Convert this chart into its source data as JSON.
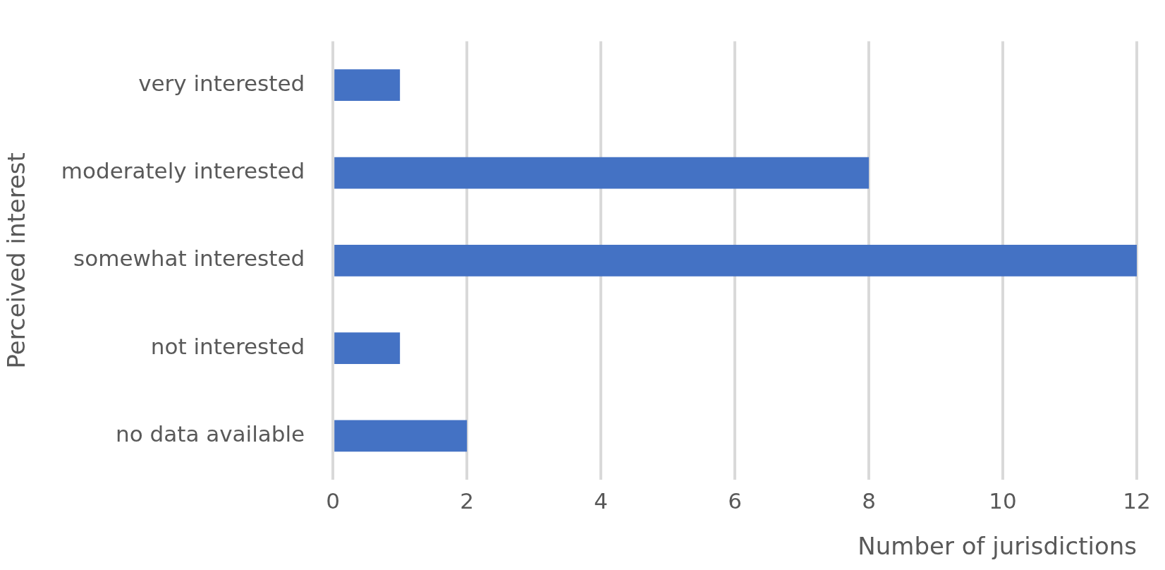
{
  "chart_data": {
    "type": "bar",
    "orientation": "horizontal",
    "xlabel": "Number of jurisdictions",
    "ylabel": "Perceived interest",
    "categories": [
      "very interested",
      "moderately interested",
      "somewhat interested",
      "not interested",
      "no data available"
    ],
    "values": [
      1,
      8,
      12,
      1,
      2
    ],
    "color": "#4472c4",
    "xlim": [
      0,
      12
    ],
    "xticks": [
      0,
      2,
      4,
      6,
      8,
      10,
      12
    ],
    "grid": "x",
    "legend": false
  }
}
